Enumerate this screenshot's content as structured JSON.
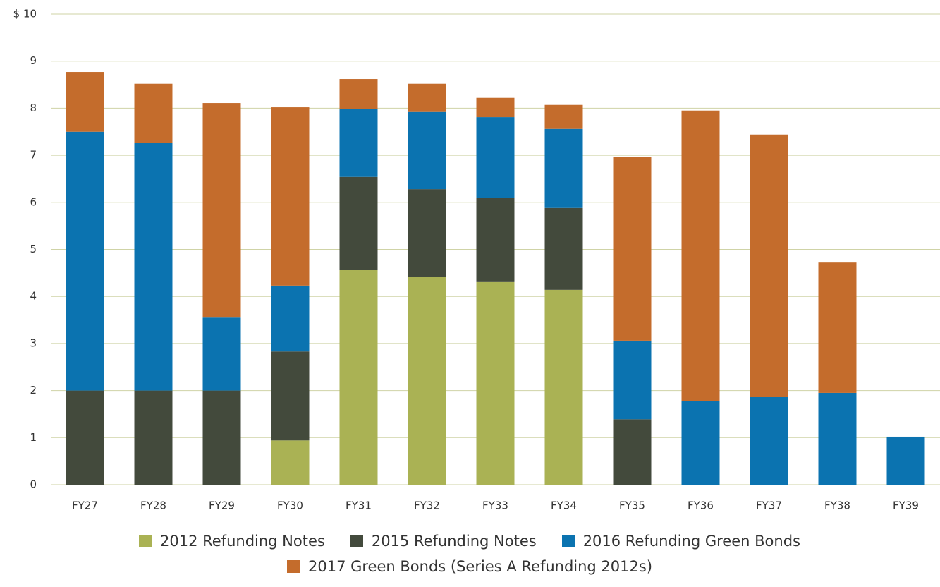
{
  "chart_data": {
    "type": "stacked_bar",
    "categories": [
      "FY27",
      "FY28",
      "FY29",
      "FY30",
      "FY31",
      "FY32",
      "FY33",
      "FY34",
      "FY35",
      "FY36",
      "FY37",
      "FY38",
      "FY39"
    ],
    "series": [
      {
        "name": "2012 Refunding Notes",
        "color": "#aab254",
        "values": [
          0,
          0,
          0,
          0.94,
          4.57,
          4.42,
          4.32,
          4.14,
          0,
          0,
          0,
          0,
          0
        ]
      },
      {
        "name": "2015 Refunding Notes",
        "color": "#434a3c",
        "values": [
          2.0,
          2.0,
          2.0,
          1.89,
          1.97,
          1.86,
          1.78,
          1.74,
          1.39,
          0,
          0,
          0,
          0
        ]
      },
      {
        "name": "2016 Refunding Green Bonds",
        "color": "#0b73b0",
        "values": [
          5.5,
          5.27,
          1.55,
          1.4,
          1.44,
          1.64,
          1.71,
          1.68,
          1.67,
          1.78,
          1.86,
          1.95,
          1.02
        ]
      },
      {
        "name": "2017 Green Bonds (Series A Refunding 2012s)",
        "color": "#c46c2c",
        "values": [
          1.27,
          1.25,
          4.56,
          3.79,
          0.64,
          0.6,
          0.41,
          0.51,
          3.91,
          6.17,
          5.58,
          2.77,
          0
        ]
      }
    ],
    "ylim": [
      0,
      10
    ],
    "yticks": [
      0,
      1,
      2,
      3,
      4,
      5,
      6,
      7,
      8,
      9,
      {
        "value": 10,
        "label": "$ 10"
      }
    ],
    "grid": true
  }
}
